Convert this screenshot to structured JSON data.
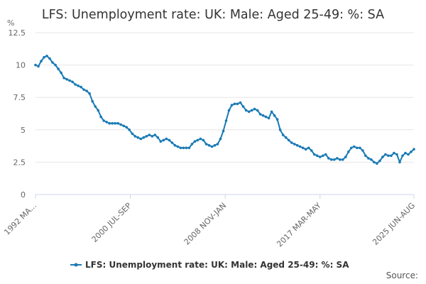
{
  "chart_data": {
    "type": "line",
    "title": "LFS: Unemployment rate: UK: Male: Aged 25-49: %: SA",
    "ylabel": "%",
    "ylim": [
      0,
      12.5
    ],
    "y_ticks": [
      0,
      2.5,
      5,
      7.5,
      10,
      12.5
    ],
    "y_tick_labels": [
      "0",
      "2.5",
      "5",
      "7.5",
      "10",
      "12.5"
    ],
    "x_range": [
      1992.25,
      2025.5
    ],
    "x_ticks": [
      {
        "label": "1992 MA...",
        "x": 1992.25
      },
      {
        "label": "2000 JUL-SEP",
        "x": 2000.58
      },
      {
        "label": "2008 NOV-JAN",
        "x": 2008.92
      },
      {
        "label": "2017 MAR-MAY",
        "x": 2017.25
      },
      {
        "label": "2025 JUN-AUG",
        "x": 2025.5
      }
    ],
    "grid": true,
    "legend_position": "bottom",
    "series": [
      {
        "name": "LFS: Unemployment rate: UK: Male: Aged 25-49: %: SA",
        "color": "#1a7ab5",
        "points": [
          [
            1992.25,
            10.0
          ],
          [
            1992.5,
            9.9
          ],
          [
            1992.75,
            10.3
          ],
          [
            1993.0,
            10.6
          ],
          [
            1993.25,
            10.7
          ],
          [
            1993.5,
            10.5
          ],
          [
            1993.75,
            10.2
          ],
          [
            1994.0,
            10.0
          ],
          [
            1994.25,
            9.7
          ],
          [
            1994.5,
            9.4
          ],
          [
            1994.75,
            9.0
          ],
          [
            1995.0,
            8.9
          ],
          [
            1995.25,
            8.8
          ],
          [
            1995.5,
            8.7
          ],
          [
            1995.75,
            8.5
          ],
          [
            1996.0,
            8.4
          ],
          [
            1996.25,
            8.3
          ],
          [
            1996.5,
            8.1
          ],
          [
            1996.75,
            8.0
          ],
          [
            1997.0,
            7.8
          ],
          [
            1997.25,
            7.2
          ],
          [
            1997.5,
            6.8
          ],
          [
            1997.75,
            6.5
          ],
          [
            1998.0,
            6.0
          ],
          [
            1998.25,
            5.7
          ],
          [
            1998.5,
            5.6
          ],
          [
            1998.75,
            5.5
          ],
          [
            1999.0,
            5.5
          ],
          [
            1999.25,
            5.5
          ],
          [
            1999.5,
            5.5
          ],
          [
            1999.75,
            5.4
          ],
          [
            2000.0,
            5.3
          ],
          [
            2000.25,
            5.2
          ],
          [
            2000.5,
            5.0
          ],
          [
            2000.75,
            4.7
          ],
          [
            2001.0,
            4.5
          ],
          [
            2001.25,
            4.4
          ],
          [
            2001.5,
            4.3
          ],
          [
            2001.75,
            4.4
          ],
          [
            2002.0,
            4.5
          ],
          [
            2002.25,
            4.6
          ],
          [
            2002.5,
            4.5
          ],
          [
            2002.75,
            4.6
          ],
          [
            2003.0,
            4.4
          ],
          [
            2003.25,
            4.1
          ],
          [
            2003.5,
            4.2
          ],
          [
            2003.75,
            4.3
          ],
          [
            2004.0,
            4.2
          ],
          [
            2004.25,
            4.0
          ],
          [
            2004.5,
            3.8
          ],
          [
            2004.75,
            3.7
          ],
          [
            2005.0,
            3.6
          ],
          [
            2005.25,
            3.6
          ],
          [
            2005.5,
            3.6
          ],
          [
            2005.75,
            3.6
          ],
          [
            2006.0,
            3.9
          ],
          [
            2006.25,
            4.1
          ],
          [
            2006.5,
            4.2
          ],
          [
            2006.75,
            4.3
          ],
          [
            2007.0,
            4.2
          ],
          [
            2007.25,
            3.9
          ],
          [
            2007.5,
            3.8
          ],
          [
            2007.75,
            3.7
          ],
          [
            2008.0,
            3.8
          ],
          [
            2008.25,
            3.9
          ],
          [
            2008.5,
            4.3
          ],
          [
            2008.75,
            4.9
          ],
          [
            2009.0,
            5.7
          ],
          [
            2009.25,
            6.5
          ],
          [
            2009.5,
            6.9
          ],
          [
            2009.75,
            7.0
          ],
          [
            2010.0,
            7.0
          ],
          [
            2010.25,
            7.1
          ],
          [
            2010.5,
            6.8
          ],
          [
            2010.75,
            6.5
          ],
          [
            2011.0,
            6.4
          ],
          [
            2011.25,
            6.5
          ],
          [
            2011.5,
            6.6
          ],
          [
            2011.75,
            6.5
          ],
          [
            2012.0,
            6.2
          ],
          [
            2012.25,
            6.1
          ],
          [
            2012.5,
            6.0
          ],
          [
            2012.75,
            5.9
          ],
          [
            2013.0,
            6.4
          ],
          [
            2013.25,
            6.1
          ],
          [
            2013.5,
            5.8
          ],
          [
            2013.75,
            5.0
          ],
          [
            2014.0,
            4.6
          ],
          [
            2014.25,
            4.4
          ],
          [
            2014.5,
            4.2
          ],
          [
            2014.75,
            4.0
          ],
          [
            2015.0,
            3.9
          ],
          [
            2015.25,
            3.8
          ],
          [
            2015.5,
            3.7
          ],
          [
            2015.75,
            3.6
          ],
          [
            2016.0,
            3.5
          ],
          [
            2016.25,
            3.6
          ],
          [
            2016.5,
            3.4
          ],
          [
            2016.75,
            3.1
          ],
          [
            2017.0,
            3.0
          ],
          [
            2017.25,
            2.9
          ],
          [
            2017.5,
            3.0
          ],
          [
            2017.75,
            3.1
          ],
          [
            2018.0,
            2.8
          ],
          [
            2018.25,
            2.7
          ],
          [
            2018.5,
            2.7
          ],
          [
            2018.75,
            2.8
          ],
          [
            2019.0,
            2.7
          ],
          [
            2019.25,
            2.7
          ],
          [
            2019.5,
            2.9
          ],
          [
            2019.75,
            3.3
          ],
          [
            2020.0,
            3.6
          ],
          [
            2020.25,
            3.7
          ],
          [
            2020.5,
            3.6
          ],
          [
            2020.75,
            3.6
          ],
          [
            2021.0,
            3.4
          ],
          [
            2021.25,
            3.0
          ],
          [
            2021.5,
            2.8
          ],
          [
            2021.75,
            2.7
          ],
          [
            2022.0,
            2.5
          ],
          [
            2022.25,
            2.4
          ],
          [
            2022.5,
            2.6
          ],
          [
            2022.75,
            2.9
          ],
          [
            2023.0,
            3.1
          ],
          [
            2023.25,
            3.0
          ],
          [
            2023.5,
            3.0
          ],
          [
            2023.75,
            3.2
          ],
          [
            2024.0,
            3.1
          ],
          [
            2024.25,
            2.5
          ],
          [
            2024.5,
            3.0
          ],
          [
            2024.75,
            3.2
          ],
          [
            2025.0,
            3.1
          ],
          [
            2025.25,
            3.3
          ],
          [
            2025.5,
            3.5
          ]
        ]
      }
    ],
    "legend": [
      "LFS: Unemployment rate: UK: Male: Aged 25-49: %: SA"
    ],
    "source_label": "Source:"
  }
}
